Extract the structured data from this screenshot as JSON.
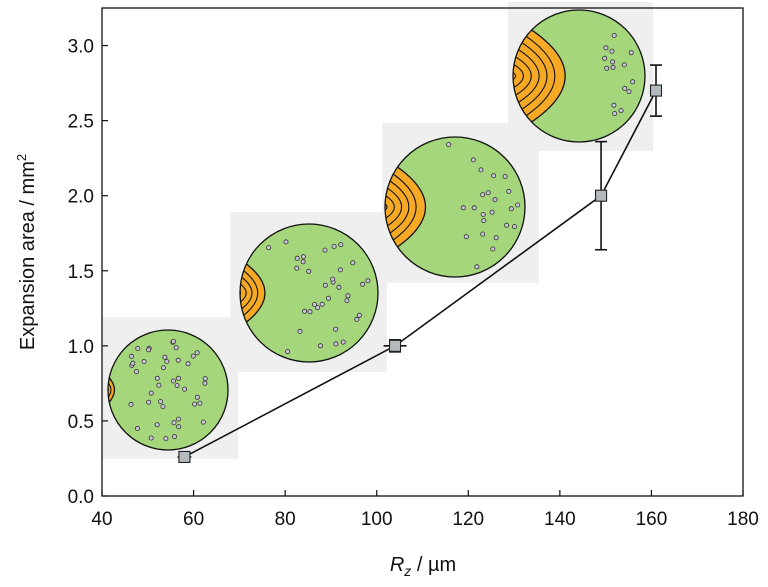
{
  "chart_data": {
    "type": "scatter",
    "xlabel": {
      "symbol": "R",
      "subscript": "z",
      "unit": " / µm"
    },
    "ylabel": {
      "text": "Expansion area / mm",
      "superscript": "2"
    },
    "xlim": [
      40,
      180
    ],
    "ylim": [
      0,
      3.25
    ],
    "xticks": [
      "40",
      "60",
      "80",
      "100",
      "120",
      "140",
      "160",
      "180"
    ],
    "yticks": [
      "0.0",
      "0.5",
      "1.0",
      "1.5",
      "2.0",
      "2.5",
      "3.0"
    ],
    "grid": false,
    "series": [
      {
        "points": [
          {
            "x": 58,
            "y": 0.26,
            "yerr": 0.02,
            "xerr": 1.5
          },
          {
            "x": 104,
            "y": 1.0,
            "yerr": 0.04,
            "xerr": 2.5
          },
          {
            "x": 149,
            "y": 2.0,
            "yerr": 0.36,
            "xerr": 0
          },
          {
            "x": 161,
            "y": 2.7,
            "yerr": 0.17,
            "xerr": 0
          }
        ]
      }
    ],
    "insets": [
      {
        "depicts": "circle-orange-lobe",
        "lobe_size": 0.14,
        "lobe_lines": 3
      },
      {
        "depicts": "circle-orange-lobe",
        "lobe_size": 0.32,
        "lobe_lines": 4
      },
      {
        "depicts": "circle-orange-lobe",
        "lobe_size": 0.48,
        "lobe_lines": 5
      },
      {
        "depicts": "circle-orange-lobe",
        "lobe_size": 0.64,
        "lobe_lines": 6
      }
    ],
    "colors": {
      "marker": "#b4babd",
      "line": "#111111",
      "inset_fill": "#a5d67c",
      "lobe_fill": "#f5a924",
      "dot_fill": "#c9c3d9",
      "inset_backdrop": "#efefef"
    }
  }
}
